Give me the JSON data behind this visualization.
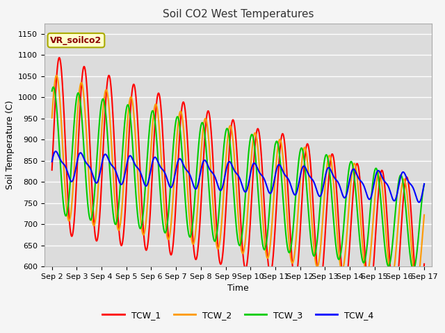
{
  "title": "Soil CO2 West Temperatures",
  "xlabel": "Time",
  "ylabel": "Soil Temperature (C)",
  "ylim": [
    600,
    1175
  ],
  "yticks": [
    600,
    650,
    700,
    750,
    800,
    850,
    900,
    950,
    1000,
    1050,
    1100,
    1150
  ],
  "xticklabels": [
    "Sep 2",
    "Sep 3",
    "Sep 4",
    "Sep 5",
    "Sep 6",
    "Sep 7",
    "Sep 8",
    "Sep 9",
    "Sep 10",
    "Sep 11",
    "Sep 12",
    "Sep 13",
    "Sep 14",
    "Sep 15",
    "Sep 16",
    "Sep 17"
  ],
  "legend_label": "VR_soilco2",
  "series_names": [
    "TCW_1",
    "TCW_2",
    "TCW_3",
    "TCW_4"
  ],
  "colors": [
    "#ff0000",
    "#ff9900",
    "#00cc00",
    "#0000ff"
  ],
  "background_color": "#dcdcdc",
  "fig_background": "#f5f5f5",
  "grid_color": "#ffffff",
  "title_fontsize": 11,
  "axis_fontsize": 9,
  "tick_fontsize": 8,
  "linewidth": 1.5
}
